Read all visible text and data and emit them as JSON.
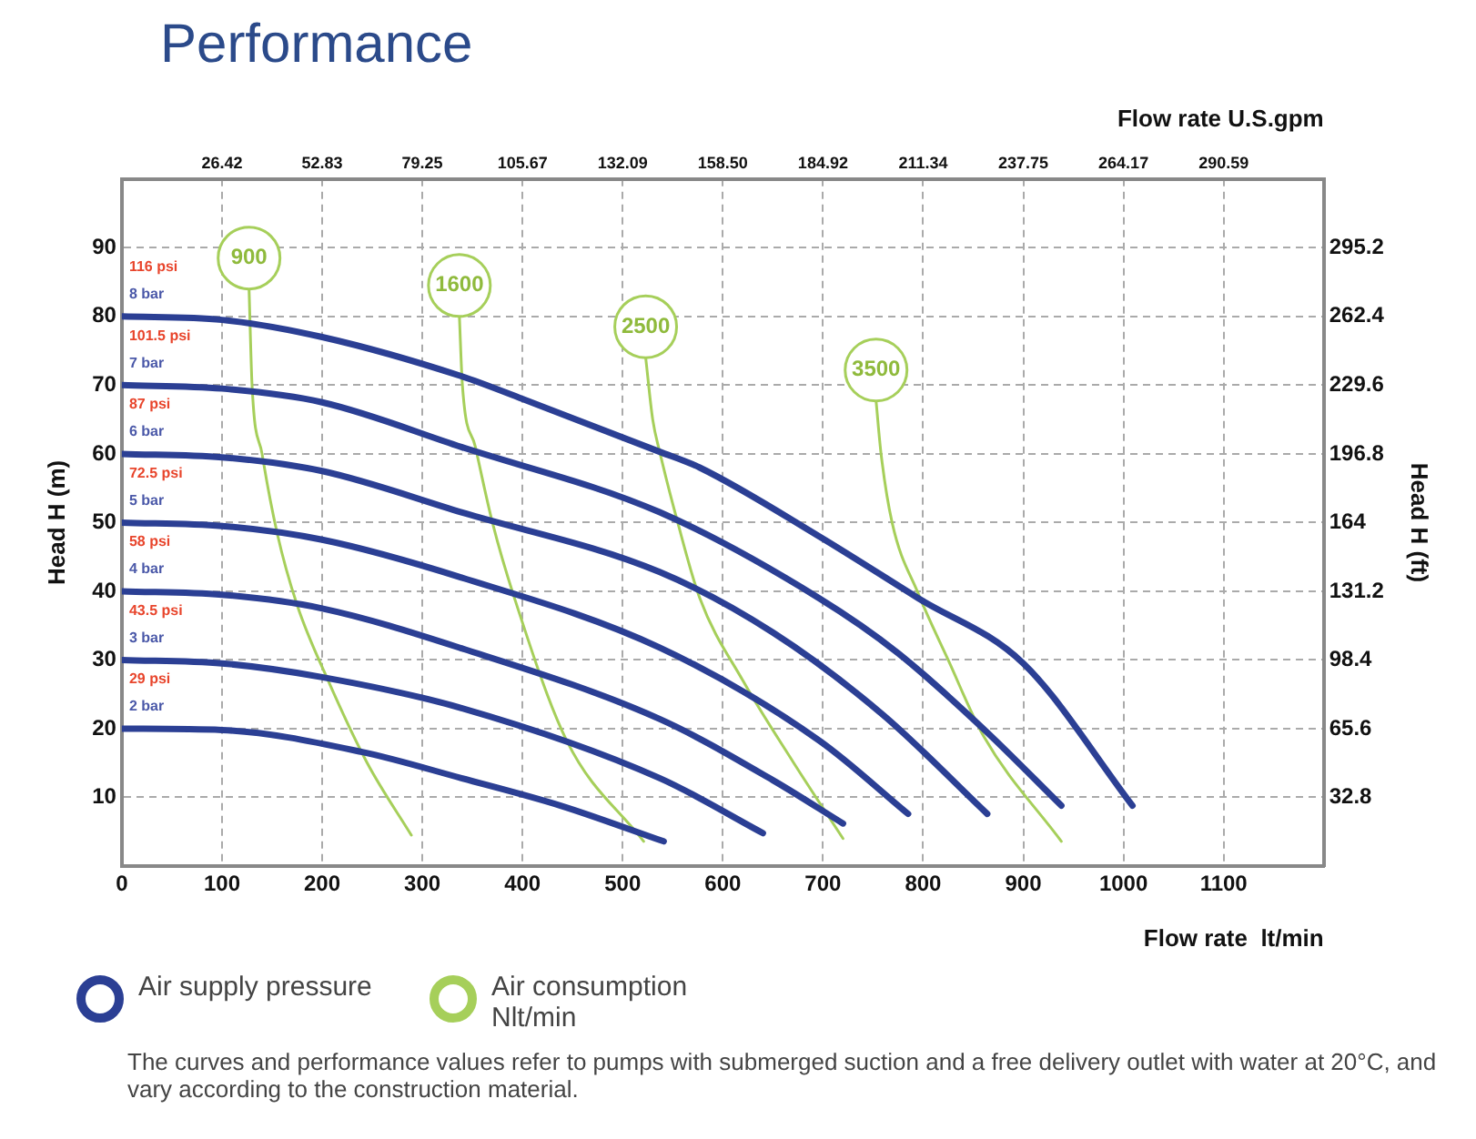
{
  "chart_data": {
    "type": "line",
    "title": "Performance",
    "xlabel": "Flow rate  lt/min",
    "x2label": "Flow rate U.S.gpm",
    "ylabel": "Head H (m)",
    "y2label": "Head H (ft)",
    "xlim": [
      0,
      1200
    ],
    "xticks": [
      0,
      100,
      200,
      300,
      400,
      500,
      600,
      700,
      800,
      900,
      1000,
      1100
    ],
    "x2lim": [
      0,
      317
    ],
    "x2ticks": [
      26.42,
      52.83,
      79.25,
      105.67,
      132.09,
      {
        "value": 158.5,
        "label": "158.50"
      },
      184.92,
      211.34,
      237.75,
      264.17,
      290.59
    ],
    "ylim": [
      0,
      100
    ],
    "yticks": [
      10,
      20,
      30,
      40,
      50,
      60,
      70,
      80,
      90
    ],
    "y2lim": [
      0,
      328
    ],
    "y2ticks": [
      32.8,
      65.6,
      98.4,
      131.2,
      164,
      196.8,
      229.6,
      262.4,
      295.2
    ],
    "grid": true,
    "line_style": "solid",
    "marker": "none",
    "series": [
      {
        "name": "8 bar",
        "color": "#2b3f94",
        "x": [
          0,
          100,
          200,
          339,
          400,
          537,
          577,
          696,
          795,
          900,
          1009
        ],
        "values": [
          80,
          79.5,
          77,
          71.3,
          68,
          60.3,
          58,
          48,
          39,
          29.5,
          8.8
        ]
      },
      {
        "name": "7 bar",
        "color": "#2b3f94",
        "x": [
          0,
          100,
          200,
          339,
          537,
          696,
          775,
          860,
          938
        ],
        "values": [
          70,
          69.5,
          67.5,
          61,
          51.5,
          39,
          31,
          20,
          8.8
        ]
      },
      {
        "name": "6 bar",
        "color": "#2b3f94",
        "x": [
          0,
          100,
          200,
          339,
          537,
          650,
          760,
          864
        ],
        "values": [
          60,
          59.5,
          57.5,
          51.5,
          42.8,
          34,
          22,
          7.6
        ]
      },
      {
        "name": "5 bar",
        "color": "#2b3f94",
        "x": [
          0,
          100,
          200,
          339,
          537,
          696,
          785
        ],
        "values": [
          50,
          49.5,
          47.5,
          42,
          31.8,
          18.3,
          7.6
        ]
      },
      {
        "name": "4 bar",
        "color": "#2b3f94",
        "x": [
          0,
          100,
          200,
          339,
          537,
          650,
          720
        ],
        "values": [
          40,
          39.5,
          37.5,
          31.7,
          21.4,
          12.5,
          6.2
        ]
      },
      {
        "name": "3 bar",
        "color": "#2b3f94",
        "x": [
          0,
          100,
          200,
          339,
          537,
          640
        ],
        "values": [
          30,
          29.5,
          27.5,
          23,
          12.8,
          4.8
        ]
      },
      {
        "name": "2 bar",
        "color": "#2b3f94",
        "x": [
          0,
          100,
          240,
          339,
          438,
          541
        ],
        "values": [
          20,
          19.8,
          16.6,
          12.8,
          8.8,
          3.6
        ]
      },
      {
        "name": "900",
        "color": "#a6cf5a",
        "x": [
          127,
          130,
          140,
          155,
          175,
          206,
          245,
          289
        ],
        "values": [
          84,
          70,
          60,
          48.5,
          38,
          27,
          15,
          4.5
        ]
      },
      {
        "name": "1600",
        "color": "#a6cf5a",
        "x": [
          337,
          340,
          353,
          370,
          392,
          444,
          521
        ],
        "values": [
          80,
          70,
          61,
          50,
          39,
          18.3,
          3.6
        ]
      },
      {
        "name": "2500",
        "color": "#a6cf5a",
        "x": [
          523,
          530,
          537,
          555,
          577,
          620,
          670,
          720
        ],
        "values": [
          74,
          65,
          60.3,
          50,
          39,
          27,
          15.2,
          4
        ]
      },
      {
        "name": "3500",
        "color": "#a6cf5a",
        "x": [
          753,
          758,
          769,
          795,
          825,
          860,
          938
        ],
        "values": [
          67.7,
          60,
          50,
          39.7,
          30,
          19,
          3.6
        ]
      }
    ],
    "annotations": [
      "Air supply pressure",
      "Air consumption Nlt/min",
      "The curves and performance values refer to pumps with submerged suction and a free delivery outlet with water at 20°C, and vary according to the construction material.",
      "116 psi",
      "101.5 psi",
      "87 psi",
      "72.5 psi",
      "58 psi",
      "43.5 psi",
      "29 psi"
    ]
  }
}
